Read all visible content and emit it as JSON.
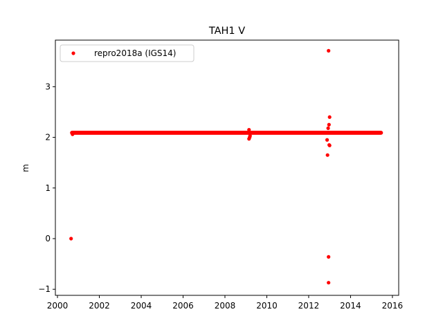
{
  "chart_data": {
    "type": "scatter",
    "title": "TAH1 V",
    "xlabel": "",
    "ylabel": "m",
    "xlim": [
      1999.9,
      2016.3
    ],
    "ylim": [
      -1.12,
      3.92
    ],
    "xticks": [
      2000,
      2002,
      2004,
      2006,
      2008,
      2010,
      2012,
      2014,
      2016
    ],
    "yticks": [
      -1,
      0,
      1,
      2,
      3
    ],
    "grid": false,
    "legend_position": "top-left",
    "series": [
      {
        "name": "repro2018a (IGS14)",
        "color": "#ff0000",
        "marker": "circle",
        "band": {
          "x_start": 2000.6,
          "x_end": 2015.55,
          "y_center": 2.09,
          "y_halfwidth": 0.04
        },
        "points": [
          {
            "x": 2000.65,
            "y": 0.0
          },
          {
            "x": 2012.95,
            "y": 3.71
          },
          {
            "x": 2013.0,
            "y": 2.4
          },
          {
            "x": 2012.97,
            "y": 2.25
          },
          {
            "x": 2012.93,
            "y": 2.18
          },
          {
            "x": 2012.88,
            "y": 1.95
          },
          {
            "x": 2012.98,
            "y": 1.85
          },
          {
            "x": 2013.0,
            "y": 1.84
          },
          {
            "x": 2012.9,
            "y": 1.65
          },
          {
            "x": 2012.95,
            "y": -0.36
          },
          {
            "x": 2012.95,
            "y": -0.87
          },
          {
            "x": 2009.15,
            "y": 2.15
          },
          {
            "x": 2009.18,
            "y": 2.0
          },
          {
            "x": 2009.15,
            "y": 1.97
          },
          {
            "x": 2009.2,
            "y": 2.03
          },
          {
            "x": 2000.72,
            "y": 2.06
          }
        ]
      }
    ]
  }
}
